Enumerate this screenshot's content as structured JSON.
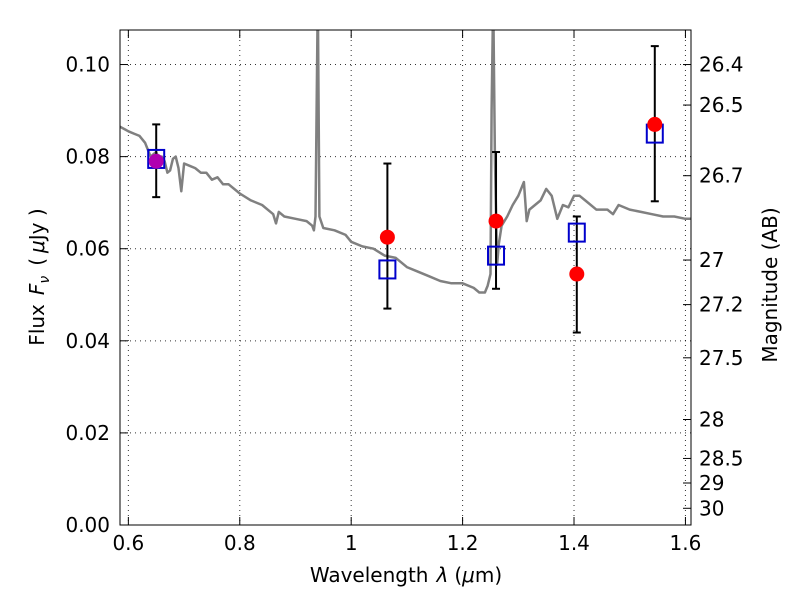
{
  "chart_data": {
    "type": "scatter",
    "title": "",
    "xlabel": "Wavelength",
    "xlabel_symbol": "λ",
    "xlabel_unit_open": "(",
    "xlabel_unit_mu": "μ",
    "xlabel_unit_close": "m)",
    "ylabel": "Flux",
    "ylabel_symbol": "F",
    "ylabel_subscript": "ν",
    "ylabel_unit_open": "(",
    "ylabel_unit_mu": "μ",
    "ylabel_unit_close": "Jy )",
    "y2label": "Magnitude (AB)",
    "xlim": [
      0.585,
      1.61
    ],
    "ylim": [
      0.0,
      0.1075
    ],
    "grid": true,
    "legend": "none",
    "x_ticks": [
      {
        "value": 0.6,
        "label": "0.6"
      },
      {
        "value": 0.8,
        "label": "0.8"
      },
      {
        "value": 1.0,
        "label": "1"
      },
      {
        "value": 1.2,
        "label": "1.2"
      },
      {
        "value": 1.4,
        "label": "1.4"
      },
      {
        "value": 1.6,
        "label": "1.6"
      }
    ],
    "y_ticks": [
      {
        "value": 0.0,
        "label": "0.00"
      },
      {
        "value": 0.02,
        "label": "0.02"
      },
      {
        "value": 0.04,
        "label": "0.04"
      },
      {
        "value": 0.06,
        "label": "0.06"
      },
      {
        "value": 0.08,
        "label": "0.08"
      },
      {
        "value": 0.1,
        "label": "0.10"
      }
    ],
    "y2_ticks": [
      {
        "magnitude": 26.4,
        "label": "26.4"
      },
      {
        "magnitude": 26.5,
        "label": "26.5"
      },
      {
        "magnitude": 26.7,
        "label": "26.7"
      },
      {
        "magnitude": 27.0,
        "label": "27"
      },
      {
        "magnitude": 27.2,
        "label": "27.2"
      },
      {
        "magnitude": 27.5,
        "label": "27.5"
      },
      {
        "magnitude": 28.0,
        "label": "28"
      },
      {
        "magnitude": 28.5,
        "label": "28.5"
      },
      {
        "magnitude": 29.0,
        "label": "29"
      },
      {
        "magnitude": 30.0,
        "label": "30"
      }
    ],
    "model_spectrum": {
      "color": "#808080",
      "x": [
        0.585,
        0.6,
        0.61,
        0.62,
        0.63,
        0.64,
        0.65,
        0.655,
        0.66,
        0.665,
        0.67,
        0.675,
        0.68,
        0.685,
        0.69,
        0.695,
        0.7,
        0.71,
        0.72,
        0.73,
        0.74,
        0.75,
        0.76,
        0.77,
        0.78,
        0.8,
        0.82,
        0.84,
        0.85,
        0.86,
        0.865,
        0.87,
        0.88,
        0.9,
        0.92,
        0.93,
        0.933,
        0.936,
        0.94,
        0.943,
        0.95,
        0.97,
        0.99,
        1.0,
        1.02,
        1.04,
        1.06,
        1.08,
        1.1,
        1.12,
        1.14,
        1.16,
        1.18,
        1.2,
        1.22,
        1.23,
        1.24,
        1.245,
        1.25,
        1.252,
        1.255,
        1.258,
        1.262,
        1.265,
        1.27,
        1.28,
        1.29,
        1.3,
        1.31,
        1.315,
        1.32,
        1.33,
        1.34,
        1.35,
        1.36,
        1.37,
        1.38,
        1.39,
        1.4,
        1.41,
        1.42,
        1.44,
        1.46,
        1.47,
        1.48,
        1.5,
        1.52,
        1.54,
        1.56,
        1.58,
        1.6,
        1.61
      ],
      "y": [
        0.0865,
        0.0855,
        0.085,
        0.0845,
        0.083,
        0.08,
        0.081,
        0.0795,
        0.08,
        0.079,
        0.0765,
        0.077,
        0.0795,
        0.08,
        0.0775,
        0.0725,
        0.0785,
        0.078,
        0.0775,
        0.0765,
        0.0765,
        0.075,
        0.0755,
        0.074,
        0.074,
        0.072,
        0.0705,
        0.0695,
        0.0685,
        0.0675,
        0.0655,
        0.068,
        0.067,
        0.0665,
        0.066,
        0.065,
        0.064,
        0.067,
        0.115,
        0.067,
        0.0645,
        0.064,
        0.063,
        0.0615,
        0.0605,
        0.06,
        0.0585,
        0.058,
        0.056,
        0.055,
        0.054,
        0.053,
        0.0525,
        0.0525,
        0.0515,
        0.0505,
        0.0505,
        0.052,
        0.0545,
        0.09,
        0.115,
        0.08,
        0.0565,
        0.061,
        0.065,
        0.067,
        0.0695,
        0.0715,
        0.0745,
        0.066,
        0.0685,
        0.0695,
        0.0705,
        0.073,
        0.0715,
        0.0665,
        0.0695,
        0.069,
        0.0715,
        0.0715,
        0.0705,
        0.0685,
        0.0685,
        0.0675,
        0.0695,
        0.0685,
        0.068,
        0.0675,
        0.067,
        0.067,
        0.0665,
        0.0665
      ]
    },
    "observed": {
      "color": "#ff0000",
      "x": [
        0.65,
        1.065,
        1.26,
        1.405,
        1.545
      ],
      "y": [
        0.079,
        0.0625,
        0.066,
        0.0545,
        0.087
      ],
      "yerr_low": [
        0.0712,
        0.047,
        0.0513,
        0.0418,
        0.0703
      ],
      "yerr_high": [
        0.087,
        0.0785,
        0.081,
        0.067,
        0.104
      ]
    },
    "model_photometry": {
      "color": "#0000cc",
      "x": [
        0.65,
        1.065,
        1.26,
        1.405,
        1.545
      ],
      "y": [
        0.0795,
        0.0555,
        0.0585,
        0.0635,
        0.085
      ]
    },
    "overlap_color": "#b000b0"
  }
}
